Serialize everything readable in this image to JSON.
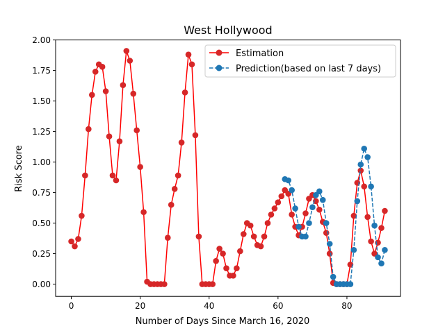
{
  "chart_data": {
    "type": "line",
    "title": "West Hollywood",
    "xlabel": "Number of Days Since March 16, 2020",
    "ylabel": "Risk Score",
    "xlim": [
      -4.55,
      95.55
    ],
    "ylim": [
      -0.1,
      2.0
    ],
    "xticks": [
      0,
      20,
      40,
      60,
      80
    ],
    "xtick_labels": [
      "0",
      "20",
      "40",
      "60",
      "80"
    ],
    "yticks": [
      0.0,
      0.25,
      0.5,
      0.75,
      1.0,
      1.25,
      1.5,
      1.75,
      2.0
    ],
    "ytick_labels": [
      "0.00",
      "0.25",
      "0.50",
      "0.75",
      "1.00",
      "1.25",
      "1.50",
      "1.75",
      "2.00"
    ],
    "grid": false,
    "legend_position": "upper right",
    "series": [
      {
        "name": "Estimation",
        "color": "#ff0000",
        "marker_color": "#d62728",
        "line_style": "solid",
        "marker": "circle",
        "x": [
          0,
          1,
          2,
          3,
          4,
          5,
          6,
          7,
          8,
          9,
          10,
          11,
          12,
          13,
          14,
          15,
          16,
          17,
          18,
          19,
          20,
          21,
          22,
          23,
          24,
          25,
          26,
          27,
          28,
          29,
          30,
          31,
          32,
          33,
          34,
          35,
          36,
          37,
          38,
          39,
          40,
          41,
          42,
          43,
          44,
          45,
          46,
          47,
          48,
          49,
          50,
          51,
          52,
          53,
          54,
          55,
          56,
          57,
          58,
          59,
          60,
          61,
          62,
          63,
          64,
          65,
          66,
          67,
          68,
          69,
          70,
          71,
          72,
          73,
          74,
          75,
          76,
          77,
          78,
          79,
          80,
          81,
          82,
          83,
          84,
          85,
          86,
          87,
          88,
          89,
          90,
          91
        ],
        "y": [
          0.35,
          0.31,
          0.37,
          0.56,
          0.89,
          1.27,
          1.55,
          1.74,
          1.8,
          1.78,
          1.58,
          1.21,
          0.89,
          0.85,
          1.17,
          1.63,
          1.91,
          1.83,
          1.56,
          1.26,
          0.96,
          0.59,
          0.02,
          0.0,
          0.0,
          0.0,
          0.0,
          0.0,
          0.38,
          0.65,
          0.78,
          0.89,
          1.16,
          1.57,
          1.88,
          1.8,
          1.22,
          0.39,
          0.0,
          0.0,
          0.0,
          0.0,
          0.19,
          0.29,
          0.25,
          0.13,
          0.07,
          0.07,
          0.13,
          0.27,
          0.41,
          0.5,
          0.48,
          0.39,
          0.32,
          0.31,
          0.39,
          0.5,
          0.57,
          0.62,
          0.67,
          0.72,
          0.77,
          0.74,
          0.57,
          0.47,
          0.4,
          0.47,
          0.58,
          0.7,
          0.73,
          0.68,
          0.61,
          0.51,
          0.42,
          0.25,
          0.01,
          0.0,
          0.0,
          0.0,
          0.0,
          0.16,
          0.56,
          0.83,
          0.93,
          0.8,
          0.55,
          0.35,
          0.25,
          0.34,
          0.46,
          0.6
        ]
      },
      {
        "name": "Prediction(based on last 7 days)",
        "color": "#1f77b4",
        "line_style": "dashed",
        "marker": "circle",
        "segments": [
          {
            "x": [
              62,
              63,
              64,
              65,
              66,
              67,
              68,
              69,
              70,
              71,
              72,
              73,
              74,
              75,
              76,
              77,
              78,
              79,
              80
            ],
            "y": [
              0.86,
              0.85,
              0.77,
              0.62,
              0.47,
              0.39,
              0.39,
              0.5,
              0.63,
              0.73,
              0.76,
              0.69,
              0.5,
              0.33,
              0.06,
              0.0,
              0.0,
              0.0,
              0.0
            ]
          },
          {
            "x": [
              81,
              82,
              83,
              84,
              85,
              86,
              87,
              88,
              89,
              90,
              91
            ],
            "y": [
              0.0,
              0.28,
              0.68,
              0.98,
              1.11,
              1.04,
              0.8,
              0.48,
              0.22,
              0.17,
              0.28
            ]
          }
        ]
      }
    ]
  }
}
